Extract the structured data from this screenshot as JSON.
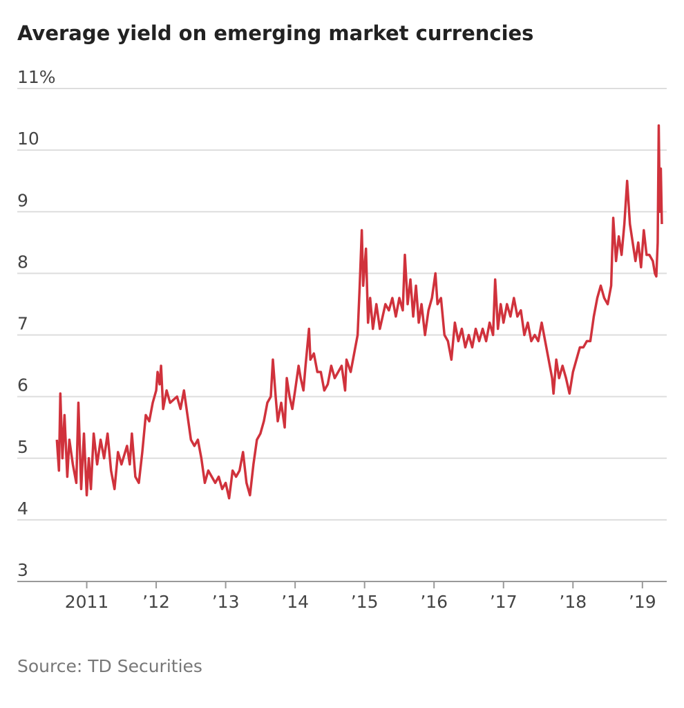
{
  "chart_data": {
    "type": "line",
    "title": "Average yield on emerging market currencies",
    "source": "Source: TD Securities",
    "color": "#d0323c",
    "grid": true,
    "xlim": [
      2010,
      2019.35
    ],
    "xticks": [
      {
        "value": 2011,
        "label": "2011"
      },
      {
        "value": 2012,
        "label": "’12"
      },
      {
        "value": 2013,
        "label": "’13"
      },
      {
        "value": 2014,
        "label": "’14"
      },
      {
        "value": 2015,
        "label": "’15"
      },
      {
        "value": 2016,
        "label": "’16"
      },
      {
        "value": 2017,
        "label": "’17"
      },
      {
        "value": 2018,
        "label": "’18"
      },
      {
        "value": 2019,
        "label": "’19"
      }
    ],
    "ylim": [
      3,
      11
    ],
    "yticks": [
      3,
      4,
      5,
      6,
      7,
      8,
      9,
      10,
      {
        "value": 11,
        "label": "11%"
      }
    ],
    "x": [
      2010.57,
      2010.6,
      2010.62,
      2010.65,
      2010.68,
      2010.72,
      2010.75,
      2010.8,
      2010.85,
      2010.88,
      2010.92,
      2010.96,
      2011.0,
      2011.03,
      2011.06,
      2011.1,
      2011.15,
      2011.2,
      2011.25,
      2011.3,
      2011.35,
      2011.4,
      2011.45,
      2011.5,
      2011.58,
      2011.62,
      2011.65,
      2011.7,
      2011.75,
      2011.8,
      2011.85,
      2011.9,
      2011.95,
      2012.0,
      2012.02,
      2012.05,
      2012.07,
      2012.1,
      2012.15,
      2012.2,
      2012.3,
      2012.35,
      2012.4,
      2012.45,
      2012.5,
      2012.55,
      2012.6,
      2012.65,
      2012.7,
      2012.75,
      2012.8,
      2012.85,
      2012.9,
      2012.95,
      2013.0,
      2013.05,
      2013.1,
      2013.15,
      2013.2,
      2013.25,
      2013.3,
      2013.35,
      2013.4,
      2013.45,
      2013.5,
      2013.55,
      2013.6,
      2013.65,
      2013.68,
      2013.72,
      2013.75,
      2013.8,
      2013.85,
      2013.88,
      2013.92,
      2013.96,
      2014.0,
      2014.05,
      2014.08,
      2014.12,
      2014.15,
      2014.2,
      2014.22,
      2014.27,
      2014.32,
      2014.37,
      2014.42,
      2014.47,
      2014.52,
      2014.57,
      2014.62,
      2014.67,
      2014.72,
      2014.74,
      2014.8,
      2014.85,
      2014.9,
      2014.93,
      2014.96,
      2014.98,
      2015.02,
      2015.05,
      2015.08,
      2015.12,
      2015.17,
      2015.22,
      2015.3,
      2015.35,
      2015.4,
      2015.45,
      2015.5,
      2015.55,
      2015.58,
      2015.62,
      2015.66,
      2015.7,
      2015.74,
      2015.78,
      2015.82,
      2015.87,
      2015.92,
      2015.97,
      2016.02,
      2016.05,
      2016.1,
      2016.15,
      2016.2,
      2016.25,
      2016.3,
      2016.35,
      2016.4,
      2016.45,
      2016.5,
      2016.55,
      2016.6,
      2016.65,
      2016.7,
      2016.75,
      2016.8,
      2016.85,
      2016.88,
      2016.92,
      2016.96,
      2017.0,
      2017.05,
      2017.1,
      2017.15,
      2017.2,
      2017.25,
      2017.3,
      2017.35,
      2017.4,
      2017.45,
      2017.5,
      2017.55,
      2017.6,
      2017.65,
      2017.7,
      2017.72,
      2017.76,
      2017.8,
      2017.85,
      2017.9,
      2017.95,
      2018.0,
      2018.05,
      2018.1,
      2018.15,
      2018.2,
      2018.25,
      2018.3,
      2018.35,
      2018.4,
      2018.45,
      2018.5,
      2018.55,
      2018.58,
      2018.62,
      2018.66,
      2018.7,
      2018.74,
      2018.78,
      2018.82,
      2018.86,
      2018.9,
      2018.94,
      2018.98,
      2019.02,
      2019.06,
      2019.1,
      2019.15,
      2019.18,
      2019.2,
      2019.22,
      2019.235,
      2019.25,
      2019.265,
      2019.28
    ],
    "values": [
      5.3,
      4.8,
      6.05,
      5.0,
      5.7,
      4.7,
      5.3,
      4.9,
      4.6,
      5.9,
      4.5,
      5.4,
      4.4,
      5.0,
      4.5,
      5.4,
      4.9,
      5.3,
      5.0,
      5.4,
      4.8,
      4.5,
      5.1,
      4.9,
      5.2,
      4.9,
      5.4,
      4.7,
      4.6,
      5.1,
      5.7,
      5.6,
      5.9,
      6.1,
      6.4,
      6.2,
      6.5,
      5.8,
      6.1,
      5.9,
      6.0,
      5.8,
      6.1,
      5.7,
      5.3,
      5.2,
      5.3,
      5.0,
      4.6,
      4.8,
      4.7,
      4.6,
      4.7,
      4.5,
      4.6,
      4.35,
      4.8,
      4.7,
      4.8,
      5.1,
      4.6,
      4.4,
      4.9,
      5.3,
      5.4,
      5.6,
      5.9,
      6.0,
      6.6,
      6.0,
      5.6,
      5.9,
      5.5,
      6.3,
      6.0,
      5.8,
      6.1,
      6.5,
      6.3,
      6.1,
      6.5,
      7.1,
      6.6,
      6.7,
      6.4,
      6.4,
      6.1,
      6.2,
      6.5,
      6.3,
      6.4,
      6.5,
      6.1,
      6.6,
      6.4,
      6.7,
      7.0,
      7.8,
      8.7,
      7.8,
      8.4,
      7.2,
      7.6,
      7.1,
      7.5,
      7.1,
      7.5,
      7.4,
      7.6,
      7.3,
      7.6,
      7.4,
      8.3,
      7.5,
      7.9,
      7.3,
      7.8,
      7.2,
      7.5,
      7.0,
      7.4,
      7.6,
      8.0,
      7.5,
      7.6,
      7.0,
      6.9,
      6.6,
      7.2,
      6.9,
      7.1,
      6.8,
      7.0,
      6.8,
      7.1,
      6.9,
      7.1,
      6.9,
      7.2,
      7.0,
      7.9,
      7.1,
      7.5,
      7.2,
      7.5,
      7.3,
      7.6,
      7.3,
      7.4,
      7.0,
      7.2,
      6.9,
      7.0,
      6.9,
      7.2,
      6.9,
      6.6,
      6.3,
      6.05,
      6.6,
      6.3,
      6.5,
      6.3,
      6.05,
      6.4,
      6.6,
      6.8,
      6.8,
      6.9,
      6.9,
      7.3,
      7.6,
      7.8,
      7.6,
      7.5,
      7.8,
      8.9,
      8.2,
      8.6,
      8.3,
      8.8,
      9.5,
      8.8,
      8.5,
      8.2,
      8.5,
      8.1,
      8.7,
      8.3,
      8.3,
      8.2,
      8.0,
      7.95,
      8.5,
      10.4,
      9.0,
      9.7,
      8.8
    ]
  }
}
